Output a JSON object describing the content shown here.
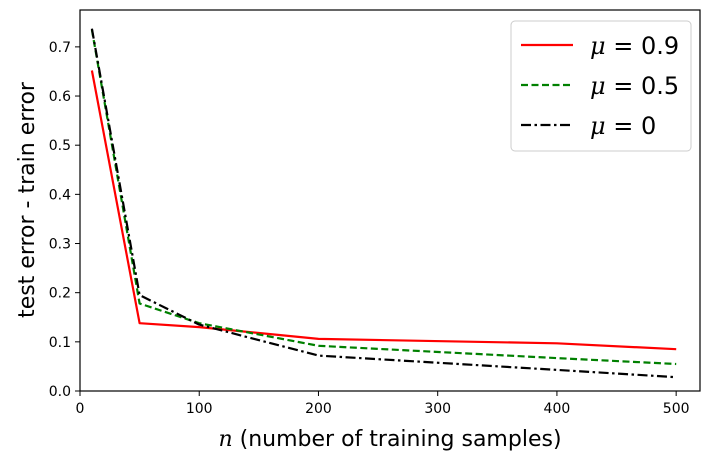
{
  "chart_data": {
    "type": "line",
    "xlabel_var": "n",
    "xlabel_rest": " (number of training samples)",
    "ylabel": "test error - train error",
    "xlim": [
      0,
      520
    ],
    "ylim": [
      0,
      0.775
    ],
    "xticks": [
      0,
      100,
      200,
      300,
      400,
      500
    ],
    "yticks": [
      0.0,
      0.1,
      0.2,
      0.3,
      0.4,
      0.5,
      0.6,
      0.7
    ],
    "grid": false,
    "legend_position": "top-right",
    "series": [
      {
        "name": "μ = 0.9",
        "legend_symbol": "μ",
        "legend_value": " = 0.9",
        "color": "#ff0000",
        "dash": "solid",
        "x": [
          10,
          50,
          100,
          200,
          400,
          500
        ],
        "values": [
          0.652,
          0.138,
          0.13,
          0.106,
          0.097,
          0.085
        ]
      },
      {
        "name": "μ = 0.5",
        "legend_symbol": "μ",
        "legend_value": " = 0.5",
        "color": "#008000",
        "dash": "dashed",
        "x": [
          10,
          50,
          100,
          200,
          400,
          500
        ],
        "values": [
          0.735,
          0.178,
          0.138,
          0.092,
          0.067,
          0.055
        ]
      },
      {
        "name": "μ = 0",
        "legend_symbol": "μ",
        "legend_value": " = 0",
        "color": "#000000",
        "dash": "dashdot",
        "x": [
          10,
          50,
          100,
          200,
          400,
          500
        ],
        "values": [
          0.737,
          0.195,
          0.135,
          0.072,
          0.043,
          0.028
        ]
      }
    ]
  }
}
